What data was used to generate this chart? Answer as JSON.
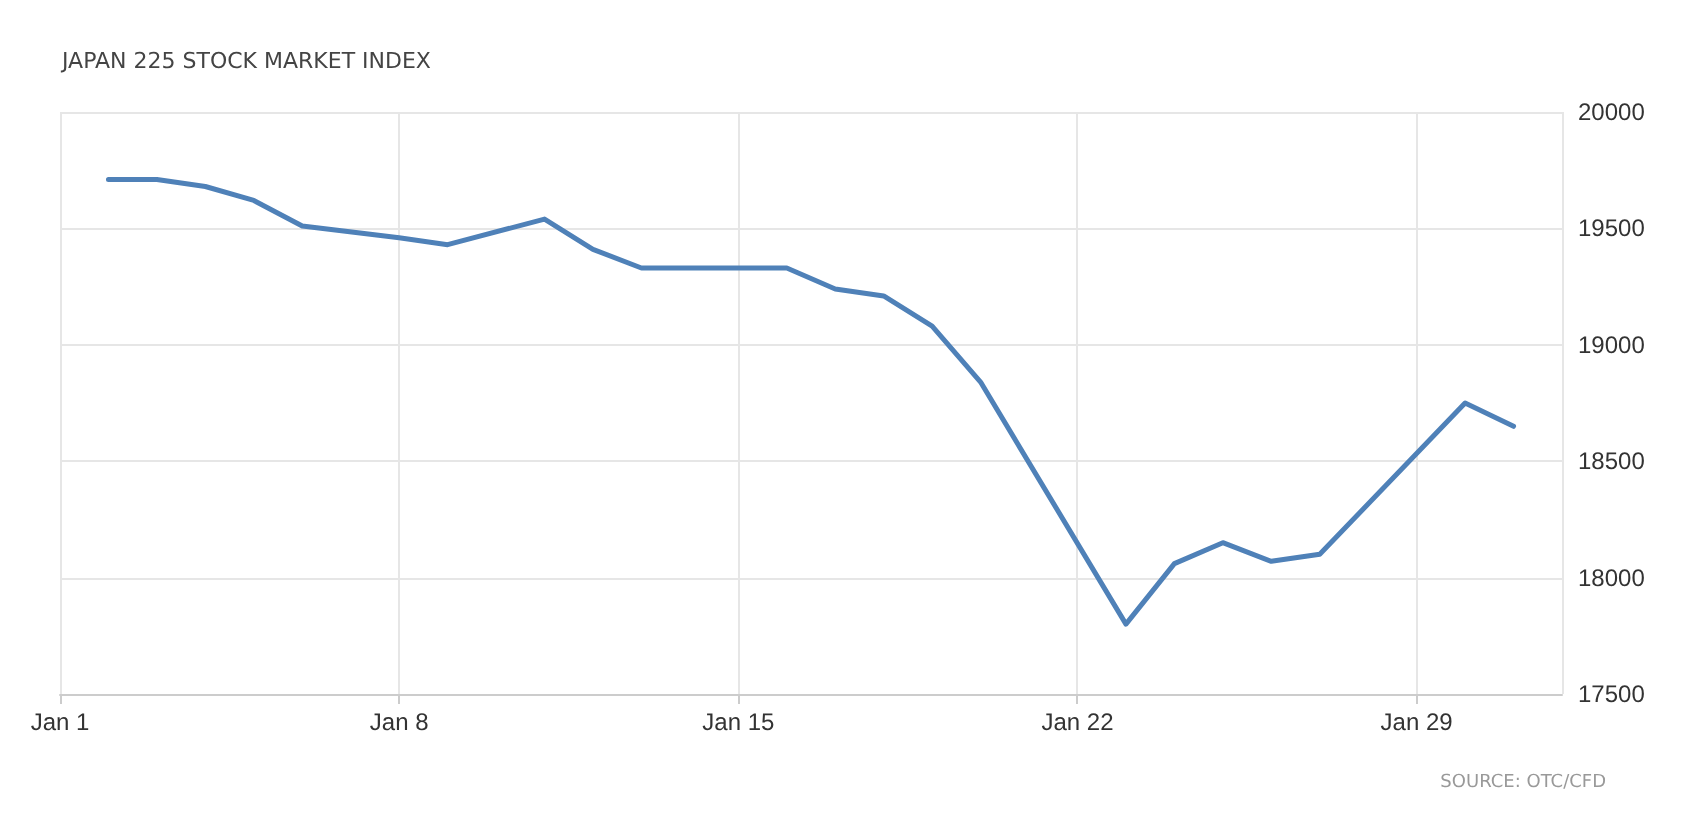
{
  "chart_data": {
    "type": "line",
    "title": "JAPAN 225 STOCK MARKET INDEX",
    "x": [
      "--01-02",
      "--01-03",
      "--01-04",
      "--01-05",
      "--01-06",
      "--01-08",
      "--01-09",
      "--01-11",
      "--01-12",
      "--01-13",
      "--01-16",
      "--01-17",
      "--01-18",
      "--01-19",
      "--01-20",
      "--01-23",
      "--01-24",
      "--01-25",
      "--01-26",
      "--01-27",
      "--01-30",
      "--01-31"
    ],
    "series": [
      {
        "color": "#4f81b8",
        "values": [
          19710,
          19710,
          19680,
          19620,
          19510,
          19460,
          19430,
          19540,
          19410,
          19330,
          19330,
          19240,
          19210,
          19080,
          18840,
          17800,
          18060,
          18150,
          18070,
          18100,
          18750,
          18650
        ]
      }
    ],
    "xlim": [
      "--01-01",
      "--02-01"
    ],
    "xticks": [
      {
        "value": "--01-01",
        "label": "Jan 1"
      },
      {
        "value": "--01-08",
        "label": "Jan 8"
      },
      {
        "value": "--01-15",
        "label": "Jan 15"
      },
      {
        "value": "--01-22",
        "label": "Jan 22"
      },
      {
        "value": "--01-29",
        "label": "Jan 29"
      }
    ],
    "ylim": [
      17500,
      20000
    ],
    "yticks": [
      17500,
      18000,
      18500,
      19000,
      19500,
      20000
    ],
    "grid": true,
    "marker": "none",
    "line_style": "solid",
    "annotations": [
      "SOURCE: OTC/CFD"
    ]
  }
}
